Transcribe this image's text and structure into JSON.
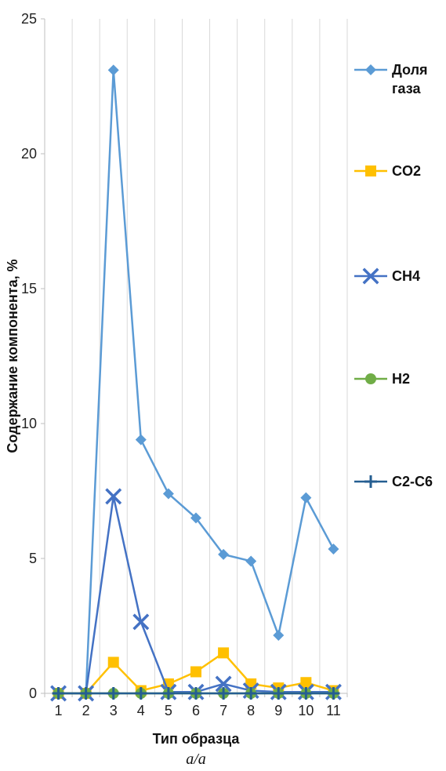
{
  "chart_data": {
    "type": "line",
    "x": [
      "1",
      "2",
      "3",
      "4",
      "5",
      "6",
      "7",
      "8",
      "9",
      "10",
      "11"
    ],
    "xlabel": "Тип образца",
    "ylabel": "Содержание компонента, %",
    "ylim": [
      0,
      25
    ],
    "yticks": [
      "0",
      "5",
      "10",
      "15",
      "20",
      "25"
    ],
    "grid": "vertical",
    "legend_position": "right",
    "caption": "a/a",
    "series": [
      {
        "name": "Доля газа",
        "name_lines": [
          "Доля",
          "газа"
        ],
        "color": "#5B9BD5",
        "marker": "diamond",
        "values": [
          0,
          0,
          23.1,
          9.4,
          7.4,
          6.5,
          5.15,
          4.9,
          2.15,
          7.25,
          5.35
        ]
      },
      {
        "name": "CO2",
        "name_lines": [
          "CO2"
        ],
        "color": "#FFC000",
        "marker": "square",
        "values": [
          0,
          0,
          1.15,
          0.1,
          0.35,
          0.8,
          1.5,
          0.35,
          0.2,
          0.4,
          0.1
        ]
      },
      {
        "name": "CH4",
        "name_lines": [
          "CH4"
        ],
        "color": "#4472C4",
        "marker": "x",
        "values": [
          0,
          0,
          7.3,
          2.65,
          0.05,
          0.05,
          0.35,
          0.1,
          0.05,
          0.05,
          0.05
        ]
      },
      {
        "name": "H2",
        "name_lines": [
          "H2"
        ],
        "color": "#70AD47",
        "marker": "circle",
        "values": [
          0,
          0,
          0,
          0,
          0,
          0,
          0,
          0,
          0,
          0,
          0
        ]
      },
      {
        "name": "C2-C6",
        "name_lines": [
          "C2-C6"
        ],
        "color": "#255E91",
        "marker": "plus",
        "values": [
          0,
          0,
          0,
          0,
          0,
          0,
          0,
          0,
          0,
          0,
          0
        ]
      }
    ]
  }
}
